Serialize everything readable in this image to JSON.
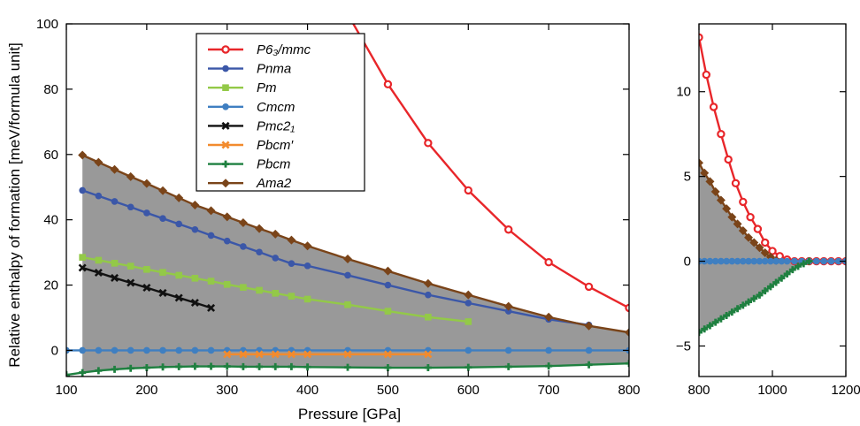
{
  "chart_data": [
    {
      "type": "line",
      "xlabel": "Pressure [GPa]",
      "ylabel": "Relative enthalpy of formation [meV/formula unit]",
      "xlim": [
        100,
        800
      ],
      "ylim": [
        -8,
        100
      ],
      "xticks": [
        100,
        200,
        300,
        400,
        500,
        600,
        700,
        800
      ],
      "yticks": [
        0,
        20,
        40,
        60,
        80,
        100
      ],
      "legend_position": "top-center",
      "shaded_region": {
        "color": "#999999",
        "description": "region between Ama2 (upper) and Pbcm (lower)"
      },
      "series": [
        {
          "name": "P6₃/mmc",
          "color": "#e8262a",
          "marker": "open-circle",
          "x": [
            450,
            500,
            550,
            600,
            650,
            700,
            750,
            800
          ],
          "y": [
            103,
            81.5,
            63.5,
            49,
            37,
            27,
            19.5,
            13
          ]
        },
        {
          "name": "Pnma",
          "color": "#3b57a8",
          "marker": "circle",
          "x": [
            120,
            140,
            160,
            180,
            200,
            220,
            240,
            260,
            280,
            300,
            320,
            340,
            360,
            380,
            400,
            450,
            500,
            550,
            600,
            650,
            700,
            750
          ],
          "y": [
            49,
            47.3,
            45.6,
            43.9,
            42.1,
            40.4,
            38.7,
            37,
            35.2,
            33.5,
            31.8,
            30.1,
            28.3,
            26.6,
            25.9,
            23,
            20,
            17,
            14.5,
            12,
            9.5,
            7.8
          ]
        },
        {
          "name": "Pm",
          "color": "#93c948",
          "marker": "square",
          "x": [
            120,
            140,
            160,
            180,
            200,
            220,
            240,
            260,
            280,
            300,
            320,
            340,
            360,
            380,
            400,
            450,
            500,
            550,
            600
          ],
          "y": [
            28.5,
            27.6,
            26.7,
            25.8,
            24.8,
            23.9,
            23,
            22.1,
            21.2,
            20.2,
            19.3,
            18.4,
            17.5,
            16.6,
            15.7,
            14,
            12,
            10.2,
            8.8
          ]
        },
        {
          "name": "Cmcm",
          "color": "#3f7fc1",
          "marker": "circle",
          "x": [
            100,
            120,
            140,
            160,
            180,
            200,
            220,
            240,
            260,
            280,
            300,
            320,
            340,
            360,
            380,
            400,
            450,
            500,
            550,
            600,
            650,
            700,
            750,
            800
          ],
          "y": [
            0,
            0,
            0,
            0,
            0,
            0,
            0,
            0,
            0,
            0,
            0,
            0,
            0,
            0,
            0,
            0,
            0,
            0,
            0,
            0,
            0,
            0,
            0,
            0
          ]
        },
        {
          "name": "Pmc2₁",
          "color": "#111111",
          "marker": "x",
          "x": [
            120,
            140,
            160,
            180,
            200,
            220,
            240,
            260,
            280
          ],
          "y": [
            25.3,
            23.8,
            22.2,
            20.7,
            19.2,
            17.6,
            16.1,
            14.6,
            13
          ]
        },
        {
          "name": "Pbcm′",
          "color": "#f28b2e",
          "marker": "x",
          "x": [
            300,
            320,
            340,
            360,
            380,
            400,
            450,
            500,
            550
          ],
          "y": [
            -1.2,
            -1.2,
            -1.2,
            -1.2,
            -1.2,
            -1.2,
            -1.2,
            -1.2,
            -1.2
          ]
        },
        {
          "name": "Pbcm",
          "color": "#1f8040",
          "marker": "plus",
          "x": [
            100,
            120,
            140,
            160,
            180,
            200,
            220,
            240,
            260,
            280,
            300,
            320,
            340,
            360,
            380,
            400,
            450,
            500,
            550,
            600,
            650,
            700,
            750,
            800
          ],
          "y": [
            -7.5,
            -6.8,
            -6.2,
            -5.8,
            -5.5,
            -5.3,
            -5.1,
            -5,
            -4.9,
            -4.9,
            -4.9,
            -5,
            -5,
            -5,
            -5,
            -5.1,
            -5.2,
            -5.3,
            -5.3,
            -5.2,
            -5,
            -4.8,
            -4.4,
            -4
          ]
        },
        {
          "name": "Ama2",
          "color": "#7a4419",
          "marker": "diamond",
          "x": [
            120,
            140,
            160,
            180,
            200,
            220,
            240,
            260,
            280,
            300,
            320,
            340,
            360,
            380,
            400,
            450,
            500,
            550,
            600,
            650,
            700,
            750,
            800
          ],
          "y": [
            59.8,
            57.6,
            55.4,
            53.2,
            51.1,
            48.9,
            46.7,
            44.5,
            42.8,
            40.9,
            39.1,
            37.3,
            35.6,
            33.8,
            32,
            28,
            24.3,
            20.5,
            17,
            13.5,
            10.2,
            7.5,
            5.5
          ]
        }
      ]
    },
    {
      "type": "line",
      "xlim": [
        800,
        1200
      ],
      "ylim": [
        -6.8,
        14
      ],
      "xticks": [
        800,
        1000,
        1200
      ],
      "yticks": [
        -5,
        0,
        5,
        10
      ],
      "shaded_region": {
        "color": "#999999",
        "description": "region between Ama2/zero (upper) and Pbcm/zero (lower)"
      },
      "series": [
        {
          "name": "P6₃/mmc",
          "color": "#e8262a",
          "marker": "open-circle",
          "x": [
            800,
            820,
            840,
            860,
            880,
            900,
            920,
            940,
            960,
            980,
            1000,
            1020,
            1040,
            1060,
            1080,
            1100,
            1120,
            1140,
            1160,
            1180,
            1200
          ],
          "y": [
            13.2,
            11,
            9.1,
            7.5,
            6,
            4.6,
            3.5,
            2.6,
            1.9,
            1.1,
            0.6,
            0.3,
            0.1,
            0,
            0,
            0,
            0,
            0,
            0,
            0,
            0
          ]
        },
        {
          "name": "Ama2",
          "color": "#7a4419",
          "marker": "diamond",
          "x": [
            800,
            815,
            830,
            845,
            860,
            875,
            890,
            905,
            920,
            935,
            950,
            965,
            980,
            995,
            1010
          ],
          "y": [
            5.8,
            5.2,
            4.7,
            4.1,
            3.6,
            3.1,
            2.6,
            2.2,
            1.8,
            1.4,
            1.1,
            0.8,
            0.5,
            0.25,
            0.05
          ]
        },
        {
          "name": "Cmcm",
          "color": "#3f7fc1",
          "marker": "circle",
          "x": [
            800,
            815,
            830,
            845,
            860,
            875,
            890,
            905,
            920,
            935,
            950,
            965,
            980,
            995,
            1010,
            1025,
            1040,
            1060,
            1080,
            1100,
            1120,
            1140,
            1160,
            1180,
            1200
          ],
          "y": [
            0,
            0,
            0,
            0,
            0,
            0,
            0,
            0,
            0,
            0,
            0,
            0,
            0,
            0,
            0,
            0,
            0,
            0,
            0,
            0,
            0,
            0,
            0,
            0,
            0
          ]
        },
        {
          "name": "Pbcm",
          "color": "#1f8040",
          "marker": "plus",
          "x": [
            800,
            815,
            830,
            845,
            860,
            875,
            890,
            905,
            920,
            935,
            950,
            965,
            980,
            995,
            1010,
            1025,
            1040,
            1055,
            1070,
            1085,
            1100
          ],
          "y": [
            -4.2,
            -4,
            -3.8,
            -3.6,
            -3.4,
            -3.2,
            -3,
            -2.8,
            -2.6,
            -2.4,
            -2.2,
            -2,
            -1.75,
            -1.5,
            -1.25,
            -1,
            -0.75,
            -0.5,
            -0.3,
            -0.15,
            0
          ]
        }
      ]
    }
  ]
}
